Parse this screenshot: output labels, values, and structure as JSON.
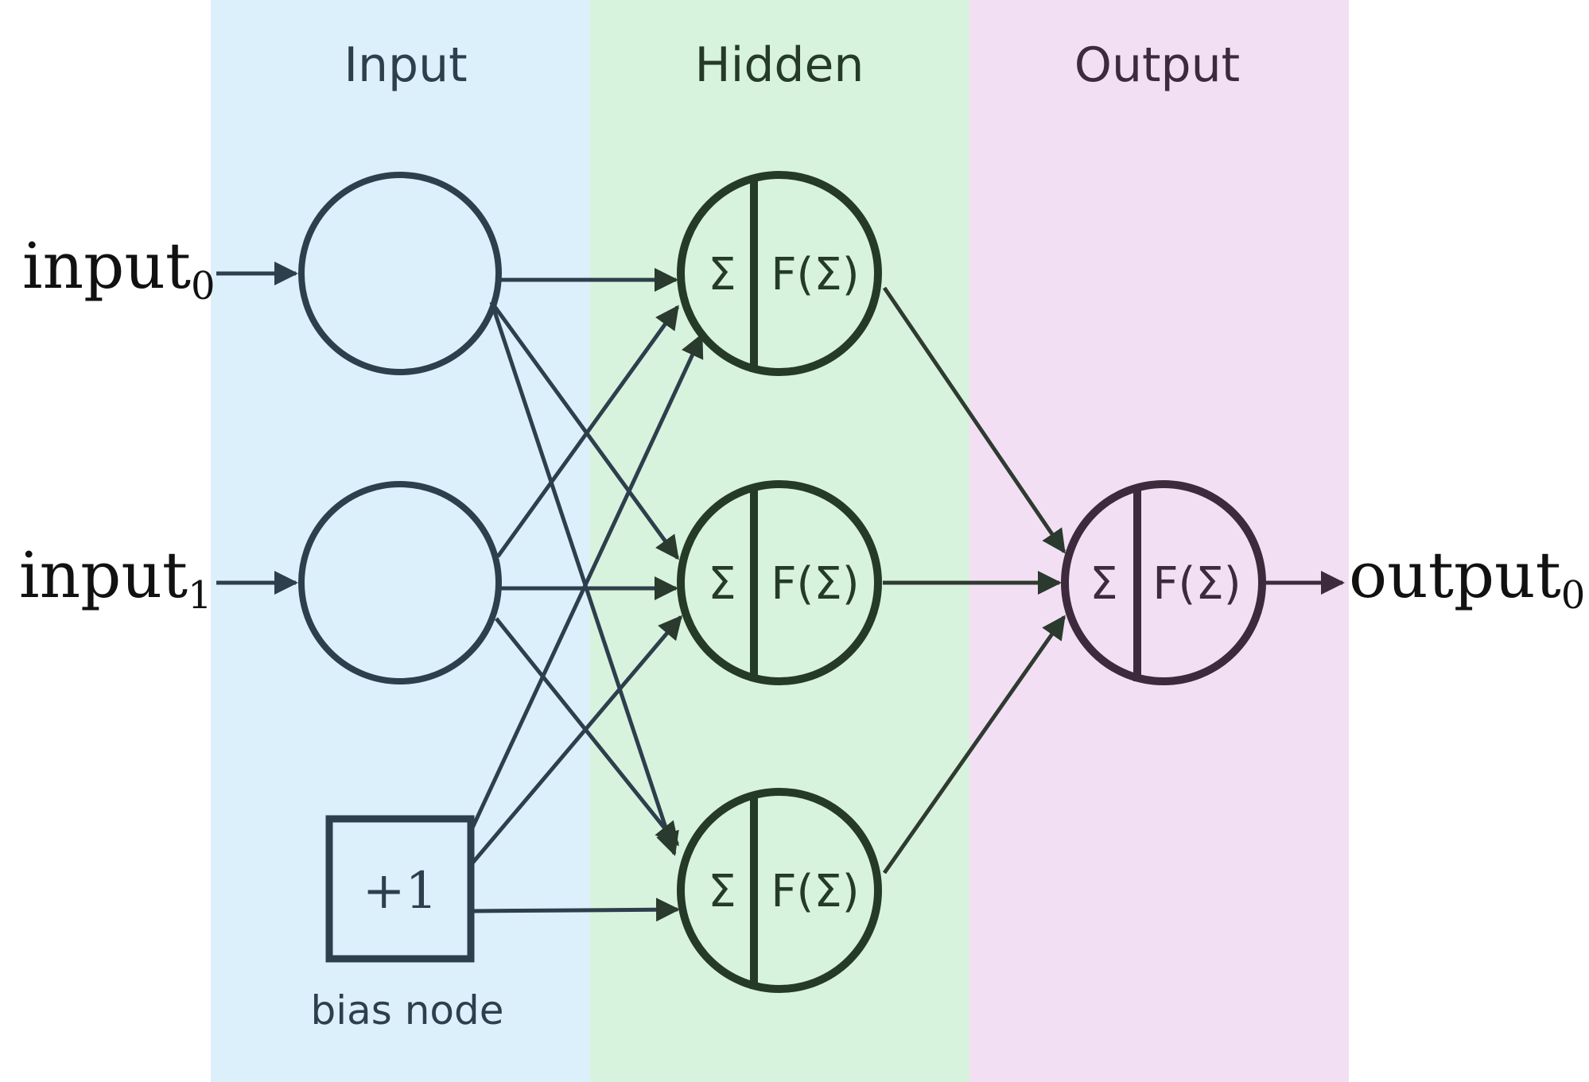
{
  "colors": {
    "input_band": "#dcf0fb",
    "hidden_band": "#d8f3dd",
    "output_band": "#f3dff3",
    "input_stroke": "#2d3f4c",
    "hidden_stroke": "#253b27",
    "output_stroke": "#3d2a3d"
  },
  "layers": {
    "input": {
      "title": "Input"
    },
    "hidden": {
      "title": "Hidden"
    },
    "output": {
      "title": "Output"
    }
  },
  "inputs": [
    {
      "base": "input",
      "sub": "0"
    },
    {
      "base": "input",
      "sub": "1"
    }
  ],
  "outputs": [
    {
      "base": "output",
      "sub": "0"
    }
  ],
  "bias": {
    "label": "+1",
    "caption": "bias node"
  },
  "neuron": {
    "sum": "Σ",
    "activation": "F(Σ)"
  }
}
